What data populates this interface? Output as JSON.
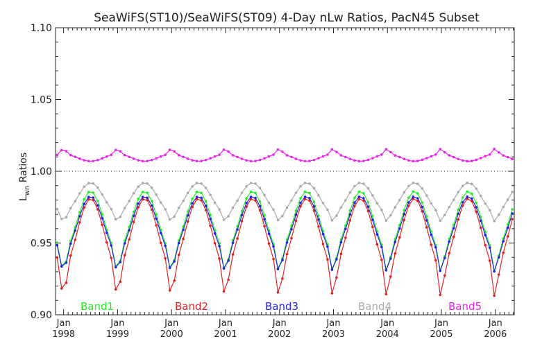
{
  "chart_data": {
    "type": "line",
    "title": "SeaWiFS(ST10)/SeaWiFS(ST09) 4-Day nLw Ratios, PacN45 Subset",
    "ylabel_main": "L",
    "ylabel_sub": "wn",
    "ylabel_rest": " Ratios",
    "xlabel": "",
    "xlim": [
      1997.85,
      2006.35
    ],
    "ylim": [
      0.9,
      1.1
    ],
    "yticks": [
      {
        "value": 0.9,
        "label": "0.90"
      },
      {
        "value": 0.95,
        "label": "0.95"
      },
      {
        "value": 1.0,
        "label": "1.00"
      },
      {
        "value": 1.05,
        "label": "1.05"
      },
      {
        "value": 1.1,
        "label": "1.10"
      }
    ],
    "xticks": [
      {
        "value": 1998,
        "month": "Jan",
        "year": "1998"
      },
      {
        "value": 1999,
        "month": "Jan",
        "year": "1999"
      },
      {
        "value": 2000,
        "month": "Jan",
        "year": "2000"
      },
      {
        "value": 2001,
        "month": "Jan",
        "year": "2001"
      },
      {
        "value": 2002,
        "month": "Jan",
        "year": "2002"
      },
      {
        "value": 2003,
        "month": "Jan",
        "year": "2003"
      },
      {
        "value": 2004,
        "month": "Jan",
        "year": "2004"
      },
      {
        "value": 2005,
        "month": "Jan",
        "year": "2005"
      },
      {
        "value": 2006,
        "month": "Jan",
        "year": "2006"
      }
    ],
    "reference_line": 1.0,
    "grid": false,
    "legend_position": "bottom inside plot",
    "series": [
      {
        "name": "Band1",
        "color": "#22ee22",
        "base": 0.9655,
        "amp": 0.0205,
        "valley": 0.0165
      },
      {
        "name": "Band2",
        "color": "#e22020",
        "base": 0.9575,
        "amp": 0.0235,
        "valley": 0.0235
      },
      {
        "name": "Band3",
        "color": "#2222dd",
        "base": 0.963,
        "amp": 0.0195,
        "valley": 0.015
      },
      {
        "name": "Band4",
        "color": "#aaaaaa",
        "base": 0.9815,
        "amp": 0.0105,
        "valley": 0.0065
      },
      {
        "name": "Band5",
        "color": "#ee22ee",
        "base": 1.0095,
        "amp": -0.0025,
        "valley": -0.004
      }
    ]
  }
}
